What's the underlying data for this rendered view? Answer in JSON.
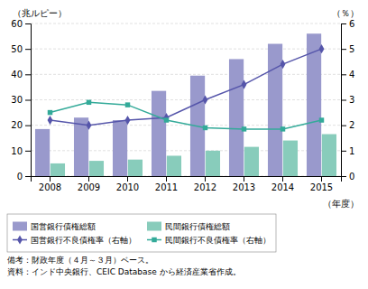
{
  "chart_data": {
    "type": "bar",
    "categories": [
      "2008",
      "2009",
      "2010",
      "2011",
      "2012",
      "2013",
      "2014",
      "2015"
    ],
    "series": [
      {
        "name": "国営銀行債権総額",
        "type": "bar",
        "color": "#9999cc",
        "values": [
          18.5,
          23,
          22,
          33.5,
          39.5,
          46,
          52,
          56
        ]
      },
      {
        "name": "民間銀行債権総額",
        "type": "bar",
        "color": "#88ccbb",
        "values": [
          5,
          6,
          6.5,
          8,
          10,
          11.5,
          14,
          16.5
        ]
      },
      {
        "name": "国営銀行不良債権率（右軸）",
        "type": "line",
        "axis": "y2",
        "color": "#5555aa",
        "marker": "diamond",
        "values": [
          2.2,
          2.0,
          2.2,
          2.3,
          3.0,
          3.6,
          4.4,
          5.0
        ]
      },
      {
        "name": "民間銀行不良債権率（右軸）",
        "type": "line",
        "axis": "y2",
        "color": "#33aa99",
        "marker": "square",
        "values": [
          2.5,
          2.9,
          2.8,
          2.2,
          1.9,
          1.85,
          1.85,
          2.2
        ]
      }
    ],
    "y_label": "（兆ルピー）",
    "y2_label": "（％）",
    "x_label": "（年度）",
    "ylim": [
      0,
      60
    ],
    "yticks": [
      0,
      10,
      20,
      30,
      40,
      50,
      60
    ],
    "y2lim": [
      0,
      6
    ],
    "y2ticks": [
      0,
      1,
      2,
      3,
      4,
      5,
      6
    ],
    "grid": true,
    "legend": "bottom",
    "annotations": [
      "備考：財政年度（４月～３月）ベース。",
      "資料：インド中央銀行、CEIC Database から経済産業省作成。"
    ]
  }
}
